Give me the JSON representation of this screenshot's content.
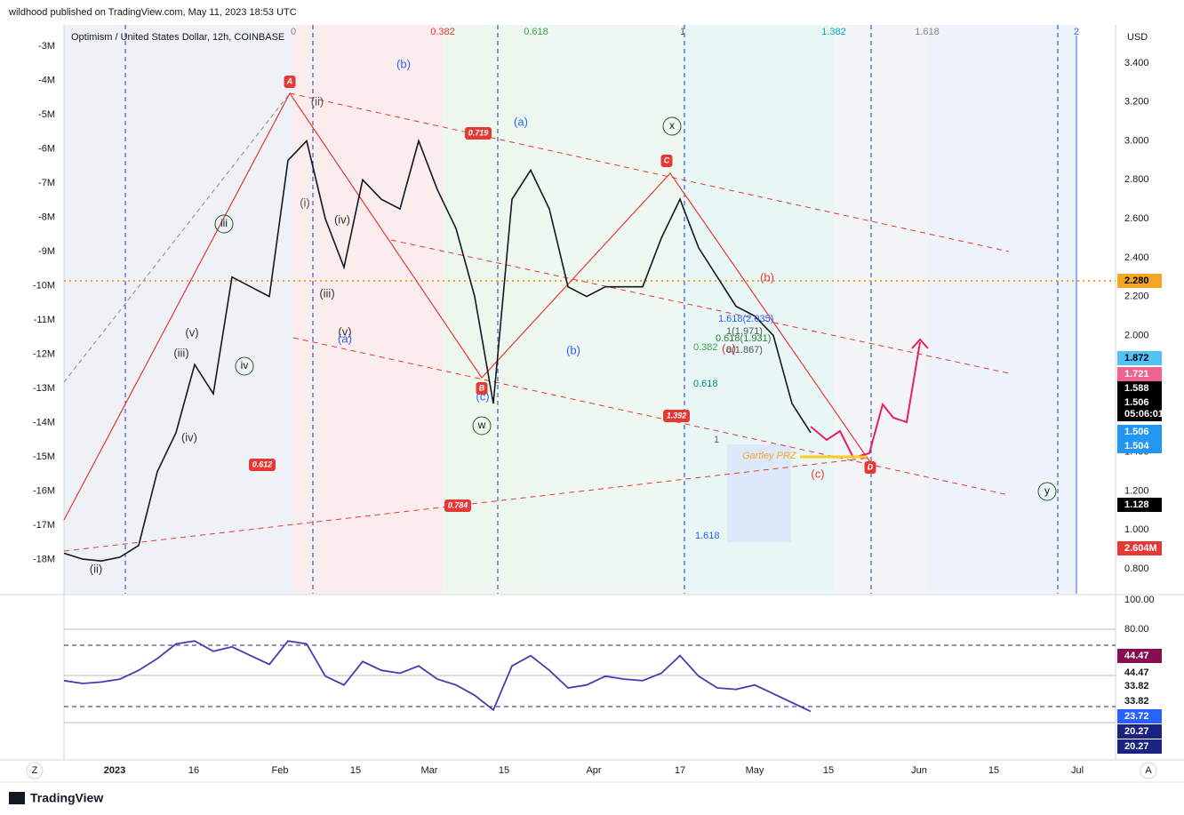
{
  "header": {
    "publisher": "wildhood published on TradingView.com, May 11, 2023 18:53 UTC",
    "symbol": "Optimism / United States Dollar, 12h, COINBASE",
    "currency": "USD"
  },
  "price": {
    "values": [
      0.88,
      0.85,
      0.84,
      0.86,
      0.92,
      1.3,
      1.5,
      1.85,
      1.7,
      2.3,
      2.25,
      2.2,
      2.9,
      3.0,
      2.6,
      2.35,
      2.8,
      2.7,
      2.65,
      3.0,
      2.75,
      2.55,
      2.2,
      1.65,
      2.7,
      2.85,
      2.65,
      2.25,
      2.2,
      2.25,
      2.25,
      2.25,
      2.5,
      2.7,
      2.45,
      2.3,
      2.15,
      2.1,
      2.0,
      1.65,
      1.5
    ],
    "ticks": [
      {
        "value": 3.4,
        "label": "3.400"
      },
      {
        "value": 3.2,
        "label": "3.200"
      },
      {
        "value": 3.0,
        "label": "3.000"
      },
      {
        "value": 2.8,
        "label": "2.800"
      },
      {
        "value": 2.6,
        "label": "2.600"
      },
      {
        "value": 2.4,
        "label": "2.400"
      },
      {
        "value": 2.2,
        "label": "2.200"
      },
      {
        "value": 2.0,
        "label": "2.000"
      },
      {
        "value": 1.8,
        "label": "1.800"
      },
      {
        "value": 1.6,
        "label": "1.600"
      },
      {
        "value": 1.4,
        "label": "1.400"
      },
      {
        "value": 1.2,
        "label": "1.200"
      },
      {
        "value": 1.0,
        "label": "1.000"
      },
      {
        "value": 0.8,
        "label": "0.800"
      }
    ]
  },
  "volume_ticks": [
    "-3M",
    "-4M",
    "-5M",
    "-6M",
    "-7M",
    "-8M",
    "-9M",
    "-10M",
    "-11M",
    "-12M",
    "-13M",
    "-14M",
    "-15M",
    "-16M",
    "-17M",
    "-18M"
  ],
  "price_badges": [
    "2.280",
    "1.872",
    "1.721",
    "1.588",
    "1.506",
    "05:06:01",
    "1.506",
    "1.504",
    "1.128",
    "2.604M"
  ],
  "fib_time_levels": [
    "0",
    "0.382",
    "0.618",
    "1",
    "1.382",
    "1.618",
    "2"
  ],
  "wave_labels": [
    "(b)",
    "(a)",
    "(ii)",
    "(i)",
    "(iv)",
    "(iii)",
    "(v)",
    "(a)",
    "(v)",
    "(iii)",
    "(iv)",
    "(ii)",
    "(b)",
    "(c)",
    "(b)",
    "(a)",
    "(c)"
  ],
  "circled_labels": [
    "iii",
    "iv",
    "w",
    "x",
    "y"
  ],
  "badges": [
    "A",
    "B",
    "C",
    "D",
    "0.719",
    "1.392",
    "0.612",
    "0.784"
  ],
  "fib_texts": [
    "1.618(2.035)",
    "1(1.971)",
    "0.618(1.931)",
    "0.382",
    "0(1.867)",
    "0.618",
    "1",
    "1.618",
    "Gartley PRZ"
  ],
  "rsi": {
    "values": [
      45,
      43,
      44,
      46,
      52,
      60,
      70,
      72,
      65,
      68,
      62,
      56,
      72,
      70,
      48,
      42,
      58,
      52,
      50,
      55,
      46,
      42,
      35,
      25,
      55,
      62,
      52,
      40,
      42,
      48,
      46,
      45,
      50,
      62,
      48,
      40,
      39,
      42,
      36,
      30,
      24
    ],
    "ticks": [
      {
        "value": 100,
        "label": "100.00"
      },
      {
        "value": 80,
        "label": "80.00"
      }
    ],
    "badges": [
      "44.47",
      "44.47",
      "33.82",
      "33.82",
      "23.72",
      "20.27",
      "20.27"
    ]
  },
  "dates": [
    "2023",
    "16",
    "Feb",
    "15",
    "Mar",
    "15",
    "Apr",
    "17",
    "May",
    "15",
    "Jun",
    "15",
    "Jul"
  ],
  "footer": {
    "brand": "TradingView",
    "left_button": "Z",
    "right_button": "A"
  }
}
